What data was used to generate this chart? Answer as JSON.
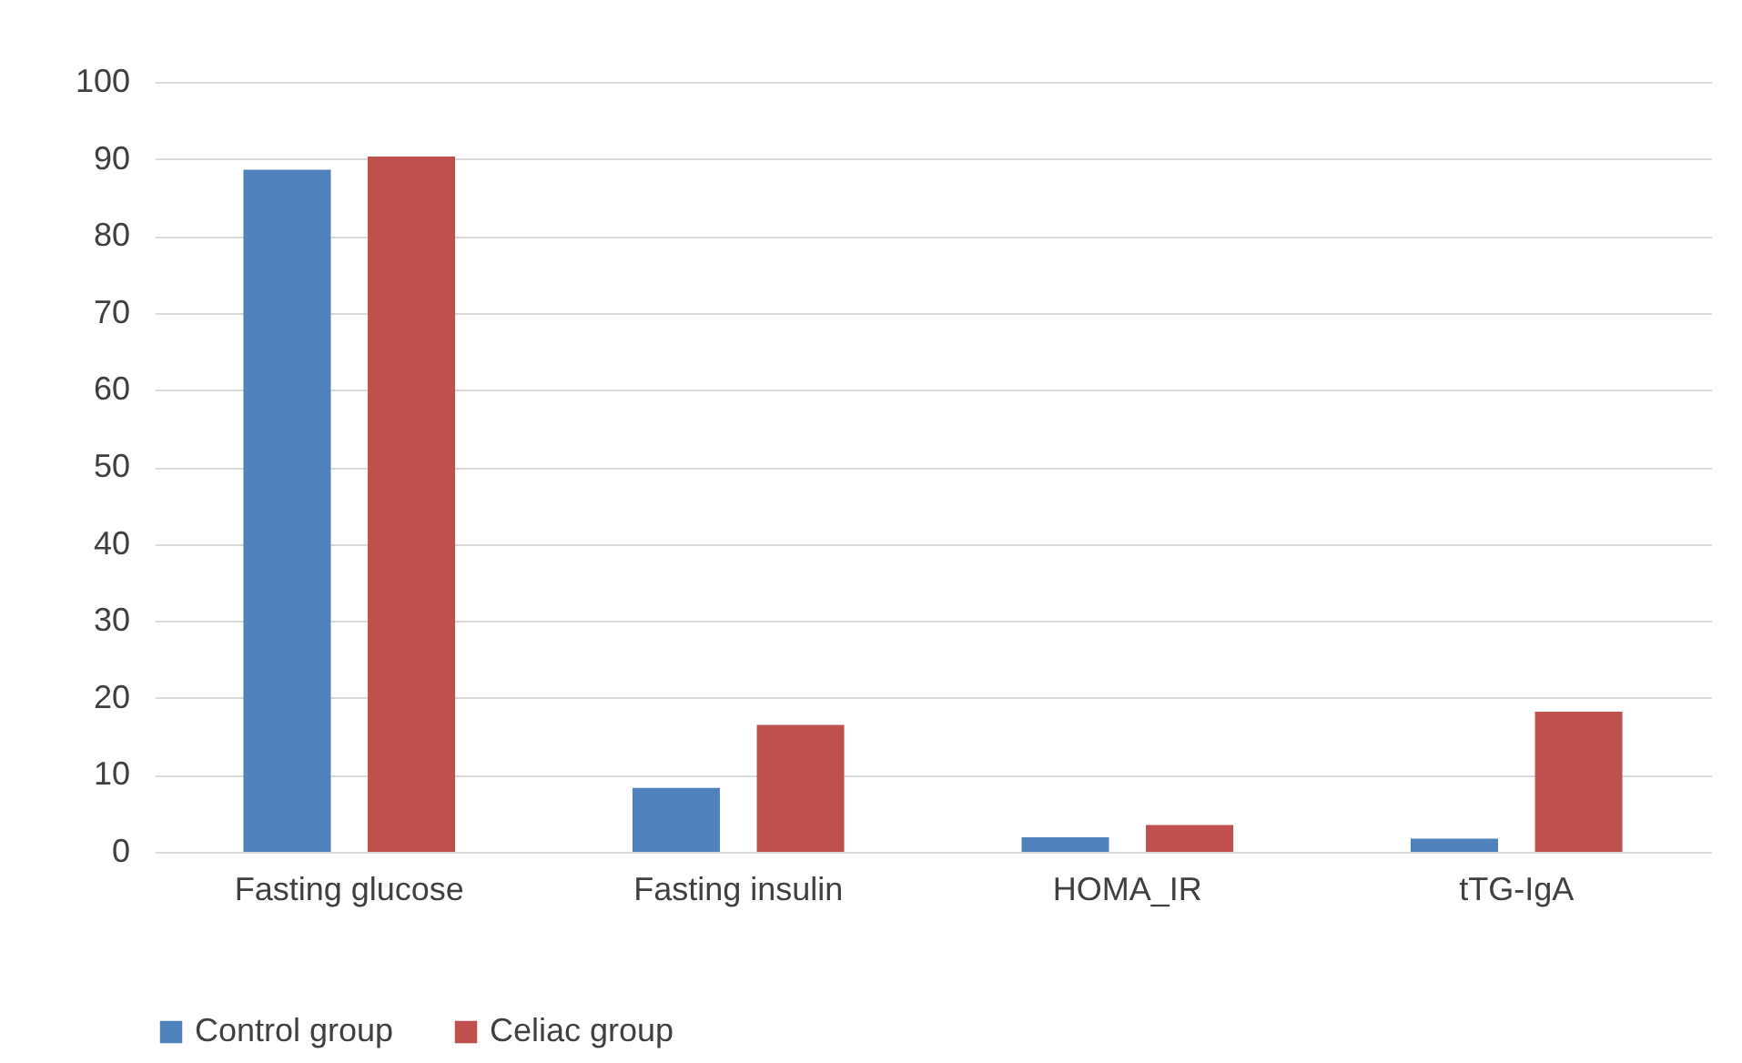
{
  "chart_data": {
    "type": "bar",
    "categories": [
      "Fasting glucose",
      "Fasting insulin",
      "HOMA_IR",
      "tTG-IgA"
    ],
    "series": [
      {
        "name": "Control group",
        "color": "#4f81bd",
        "values": [
          88.6,
          8.3,
          1.9,
          1.7
        ]
      },
      {
        "name": "Celiac group",
        "color": "#c0504d",
        "values": [
          90.3,
          16.5,
          3.5,
          18.2
        ]
      }
    ],
    "ylim": [
      0,
      100
    ],
    "yticks": [
      0,
      10,
      20,
      30,
      40,
      50,
      60,
      70,
      80,
      90,
      100
    ],
    "grid": "y",
    "legend": "bottom"
  }
}
